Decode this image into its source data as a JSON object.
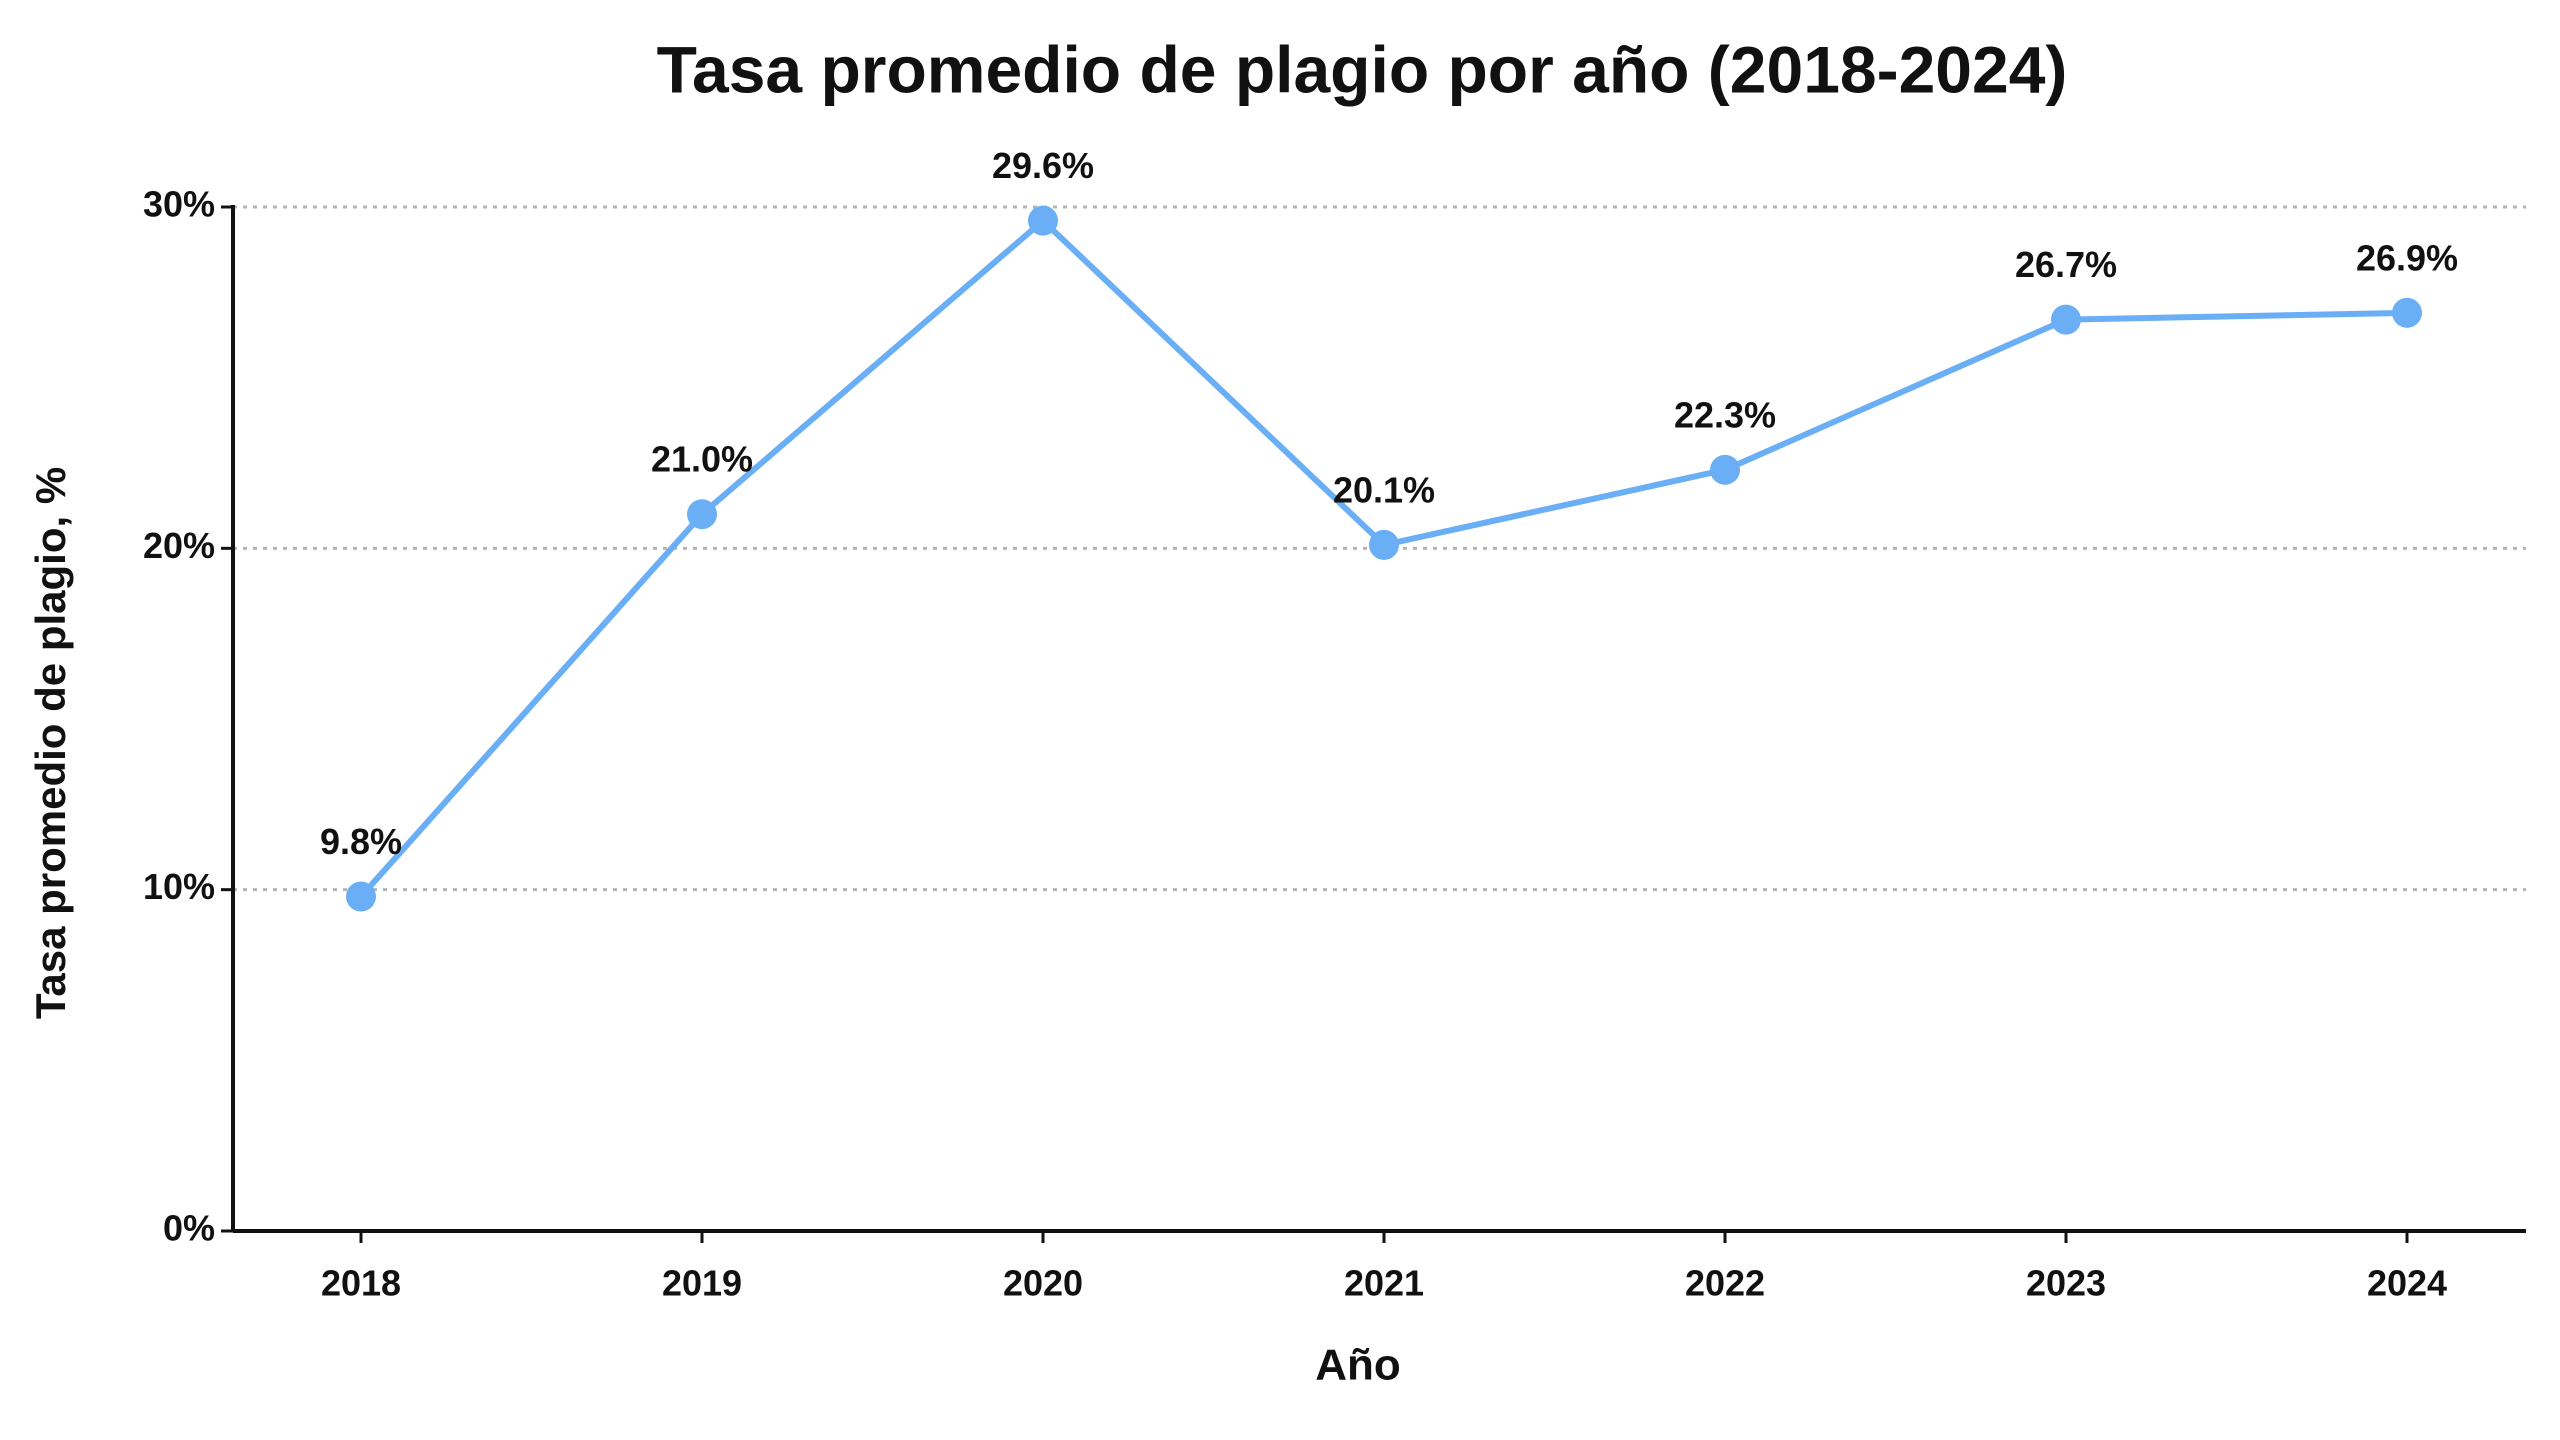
{
  "chart_data": {
    "type": "line",
    "title": "Tasa promedio de plagio por año (2018-2024)",
    "x_label": "Año",
    "y_label": "Tasa promedio de plagio, %",
    "categories": [
      "2018",
      "2019",
      "2020",
      "2021",
      "2022",
      "2023",
      "2024"
    ],
    "series": [
      {
        "name": "Tasa promedio de plagio",
        "color": "#6aaff5",
        "values": [
          9.8,
          21.0,
          29.6,
          20.1,
          22.3,
          26.7,
          26.9
        ],
        "value_labels": [
          "9.8%",
          "21.0%",
          "29.6%",
          "20.1%",
          "22.3%",
          "26.7%",
          "26.9%"
        ]
      }
    ],
    "ylim": [
      0,
      30
    ],
    "yticks": [
      {
        "value": 0,
        "label": "0%"
      },
      {
        "value": 10,
        "label": "10%"
      },
      {
        "value": 20,
        "label": "20%"
      },
      {
        "value": 30,
        "label": "30%"
      }
    ],
    "grid": true
  }
}
